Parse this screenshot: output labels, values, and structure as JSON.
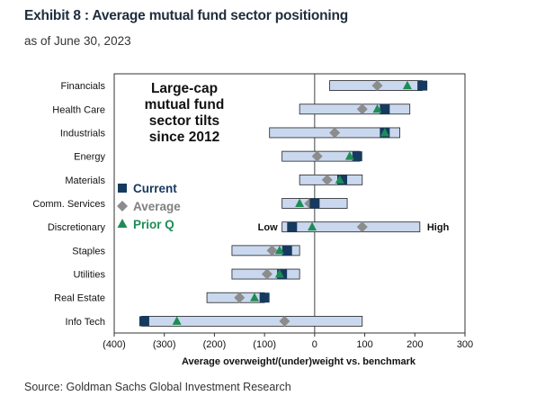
{
  "title": "Exhibit 8 : Average mutual fund sector positioning",
  "subtitle": "as of June 30, 2023",
  "source": "Source: Goldman Sachs Global Investment Research",
  "colors": {
    "range": "#c9d8ee",
    "current": "#163a5f",
    "average": "#8c8c8c",
    "prior": "#1e8c55"
  },
  "chart_data": {
    "type": "range-dot",
    "inset_title": [
      "Large-cap",
      "mutual fund",
      "sector tilts",
      "since 2012"
    ],
    "xlabel": "Average overweight/(under)weight vs. benchmark",
    "ylabel": "",
    "xlim": [
      -400,
      300
    ],
    "xticks": [
      -400,
      -300,
      -200,
      -100,
      0,
      100,
      200,
      300
    ],
    "xtick_labels": [
      "(400)",
      "(300)",
      "(200)",
      "(100)",
      "0",
      "100",
      "200",
      "300"
    ],
    "grid": false,
    "legend": {
      "position": "left-center",
      "entries": [
        {
          "key": "current",
          "label": "Current",
          "marker": "square"
        },
        {
          "key": "average",
          "label": "Average",
          "marker": "diamond"
        },
        {
          "key": "prior",
          "label": "Prior Q",
          "marker": "triangle"
        }
      ]
    },
    "range_labels": {
      "low": "Low",
      "high": "High"
    },
    "categories": [
      "Financials",
      "Health Care",
      "Industrials",
      "Energy",
      "Materials",
      "Comm. Services",
      "Discretionary",
      "Staples",
      "Utilities",
      "Real Estate",
      "Info Tech"
    ],
    "min": [
      30,
      -30,
      -90,
      -65,
      -30,
      -65,
      -65,
      -165,
      -165,
      -215,
      -345
    ],
    "max": [
      215,
      190,
      170,
      90,
      95,
      65,
      210,
      -30,
      -30,
      -100,
      95
    ],
    "current": [
      215,
      140,
      140,
      85,
      55,
      0,
      -45,
      -55,
      -65,
      -100,
      -340
    ],
    "average": [
      125,
      95,
      40,
      5,
      25,
      -10,
      95,
      -85,
      -95,
      -150,
      -60
    ],
    "prior": [
      185,
      125,
      140,
      70,
      50,
      -30,
      -5,
      -70,
      -70,
      -120,
      -275
    ]
  }
}
